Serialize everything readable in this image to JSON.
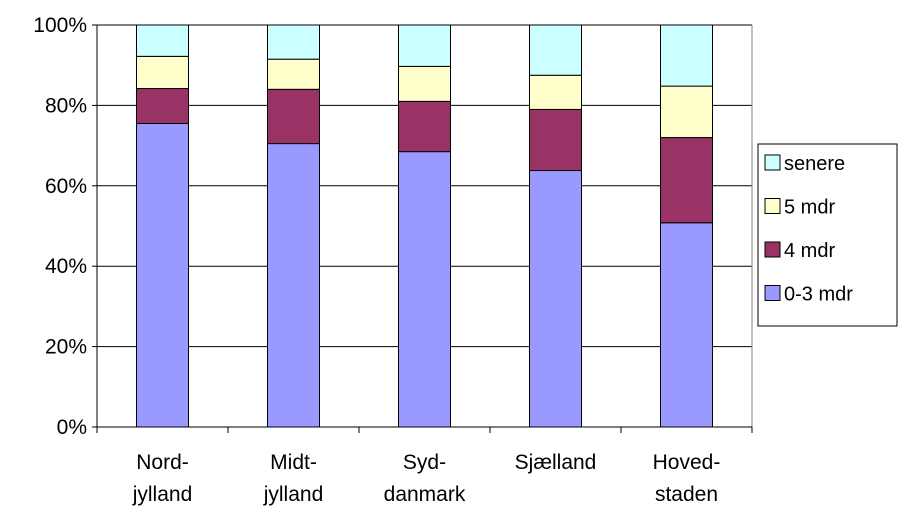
{
  "chart_data": {
    "type": "bar",
    "stacked": true,
    "normalized": true,
    "categories": [
      [
        "Nord-",
        "jylland"
      ],
      [
        "Midt-",
        "jylland"
      ],
      [
        "Syd-",
        "danmark"
      ],
      [
        "Sjælland"
      ],
      [
        "Hoved-",
        "staden"
      ]
    ],
    "series": [
      {
        "name": "0-3 mdr",
        "color": "#9999ff",
        "values": [
          75.5,
          70.5,
          68.5,
          63.8,
          50.8
        ]
      },
      {
        "name": "4 mdr",
        "color": "#993366",
        "values": [
          8.7,
          13.5,
          12.5,
          15.2,
          21.2
        ]
      },
      {
        "name": "5 mdr",
        "color": "#ffffcc",
        "values": [
          8.0,
          7.5,
          8.7,
          8.5,
          12.8
        ]
      },
      {
        "name": "senere",
        "color": "#ccffff",
        "values": [
          7.8,
          8.5,
          10.3,
          12.5,
          15.2
        ]
      }
    ],
    "y_ticks": [
      "0%",
      "20%",
      "40%",
      "60%",
      "80%",
      "100%"
    ],
    "ylim": [
      0,
      100
    ],
    "grid": true,
    "legend": {
      "position": "right",
      "order": [
        "senere",
        "5 mdr",
        "4 mdr",
        "0-3 mdr"
      ]
    },
    "title": "",
    "xlabel": "",
    "ylabel": ""
  }
}
